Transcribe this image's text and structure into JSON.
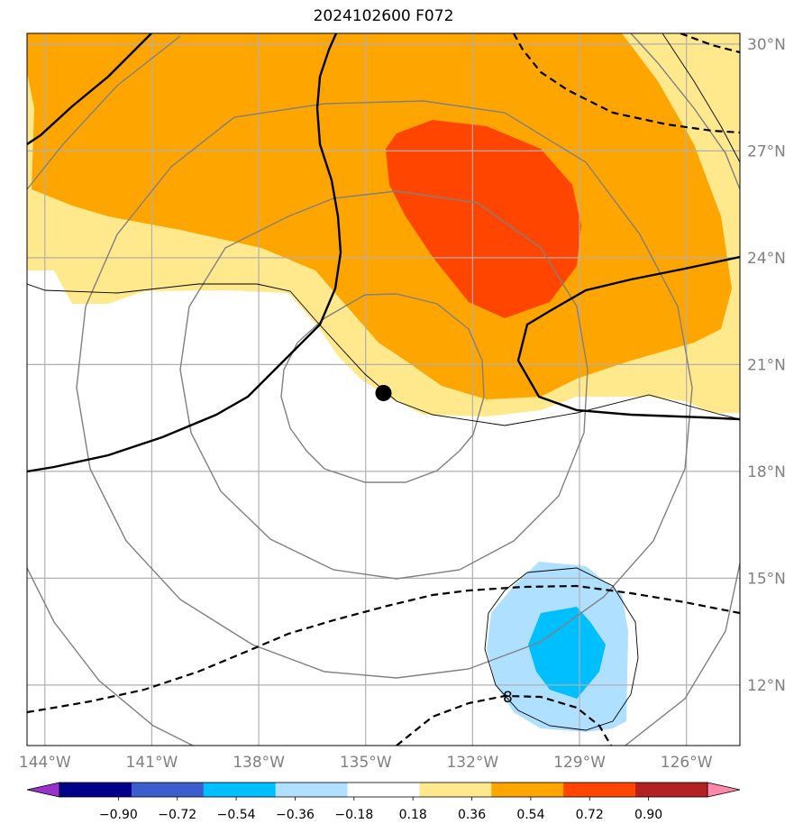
{
  "title": "2024102600 F072",
  "map": {
    "lon_range": [
      -144.5,
      -124.5
    ],
    "lat_range": [
      10.3,
      30.3
    ],
    "lon_ticks": [
      {
        "value": -144,
        "label": "144°W"
      },
      {
        "value": -141,
        "label": "141°W"
      },
      {
        "value": -138,
        "label": "138°W"
      },
      {
        "value": -135,
        "label": "135°W"
      },
      {
        "value": -132,
        "label": "132°W"
      },
      {
        "value": -129,
        "label": "129°W"
      },
      {
        "value": -126,
        "label": "126°W"
      }
    ],
    "lat_ticks": [
      {
        "value": 30,
        "label": "30°N"
      },
      {
        "value": 27,
        "label": "27°N"
      },
      {
        "value": 24,
        "label": "24°N"
      },
      {
        "value": 21,
        "label": "21°N"
      },
      {
        "value": 18,
        "label": "18°N"
      },
      {
        "value": 15,
        "label": "15°N"
      },
      {
        "value": 12,
        "label": "12°N"
      }
    ],
    "grid": true,
    "storm_center": {
      "lon": -134.5,
      "lat": 20.2
    },
    "contour_label": "8",
    "fill_colors": {
      "pos_low": "#ffe98c",
      "pos_mid": "#ffa500",
      "pos_high": "#ff4500",
      "neg_low": "#b0e0ff",
      "neg_mid": "#00bfff"
    }
  },
  "colorbar": {
    "levels": [
      "−0.90",
      "−0.72",
      "−0.54",
      "−0.36",
      "−0.18",
      "0.18",
      "0.36",
      "0.54",
      "0.72",
      "0.90"
    ],
    "colors": [
      "#9932cc",
      "#00008b",
      "#3a5fcd",
      "#00bfff",
      "#b0e0ff",
      "#ffffff",
      "#ffe98c",
      "#ffa500",
      "#ff4500",
      "#b22222",
      "#ff88aa"
    ],
    "under_color": "#9932cc",
    "over_color": "#ff88aa"
  }
}
